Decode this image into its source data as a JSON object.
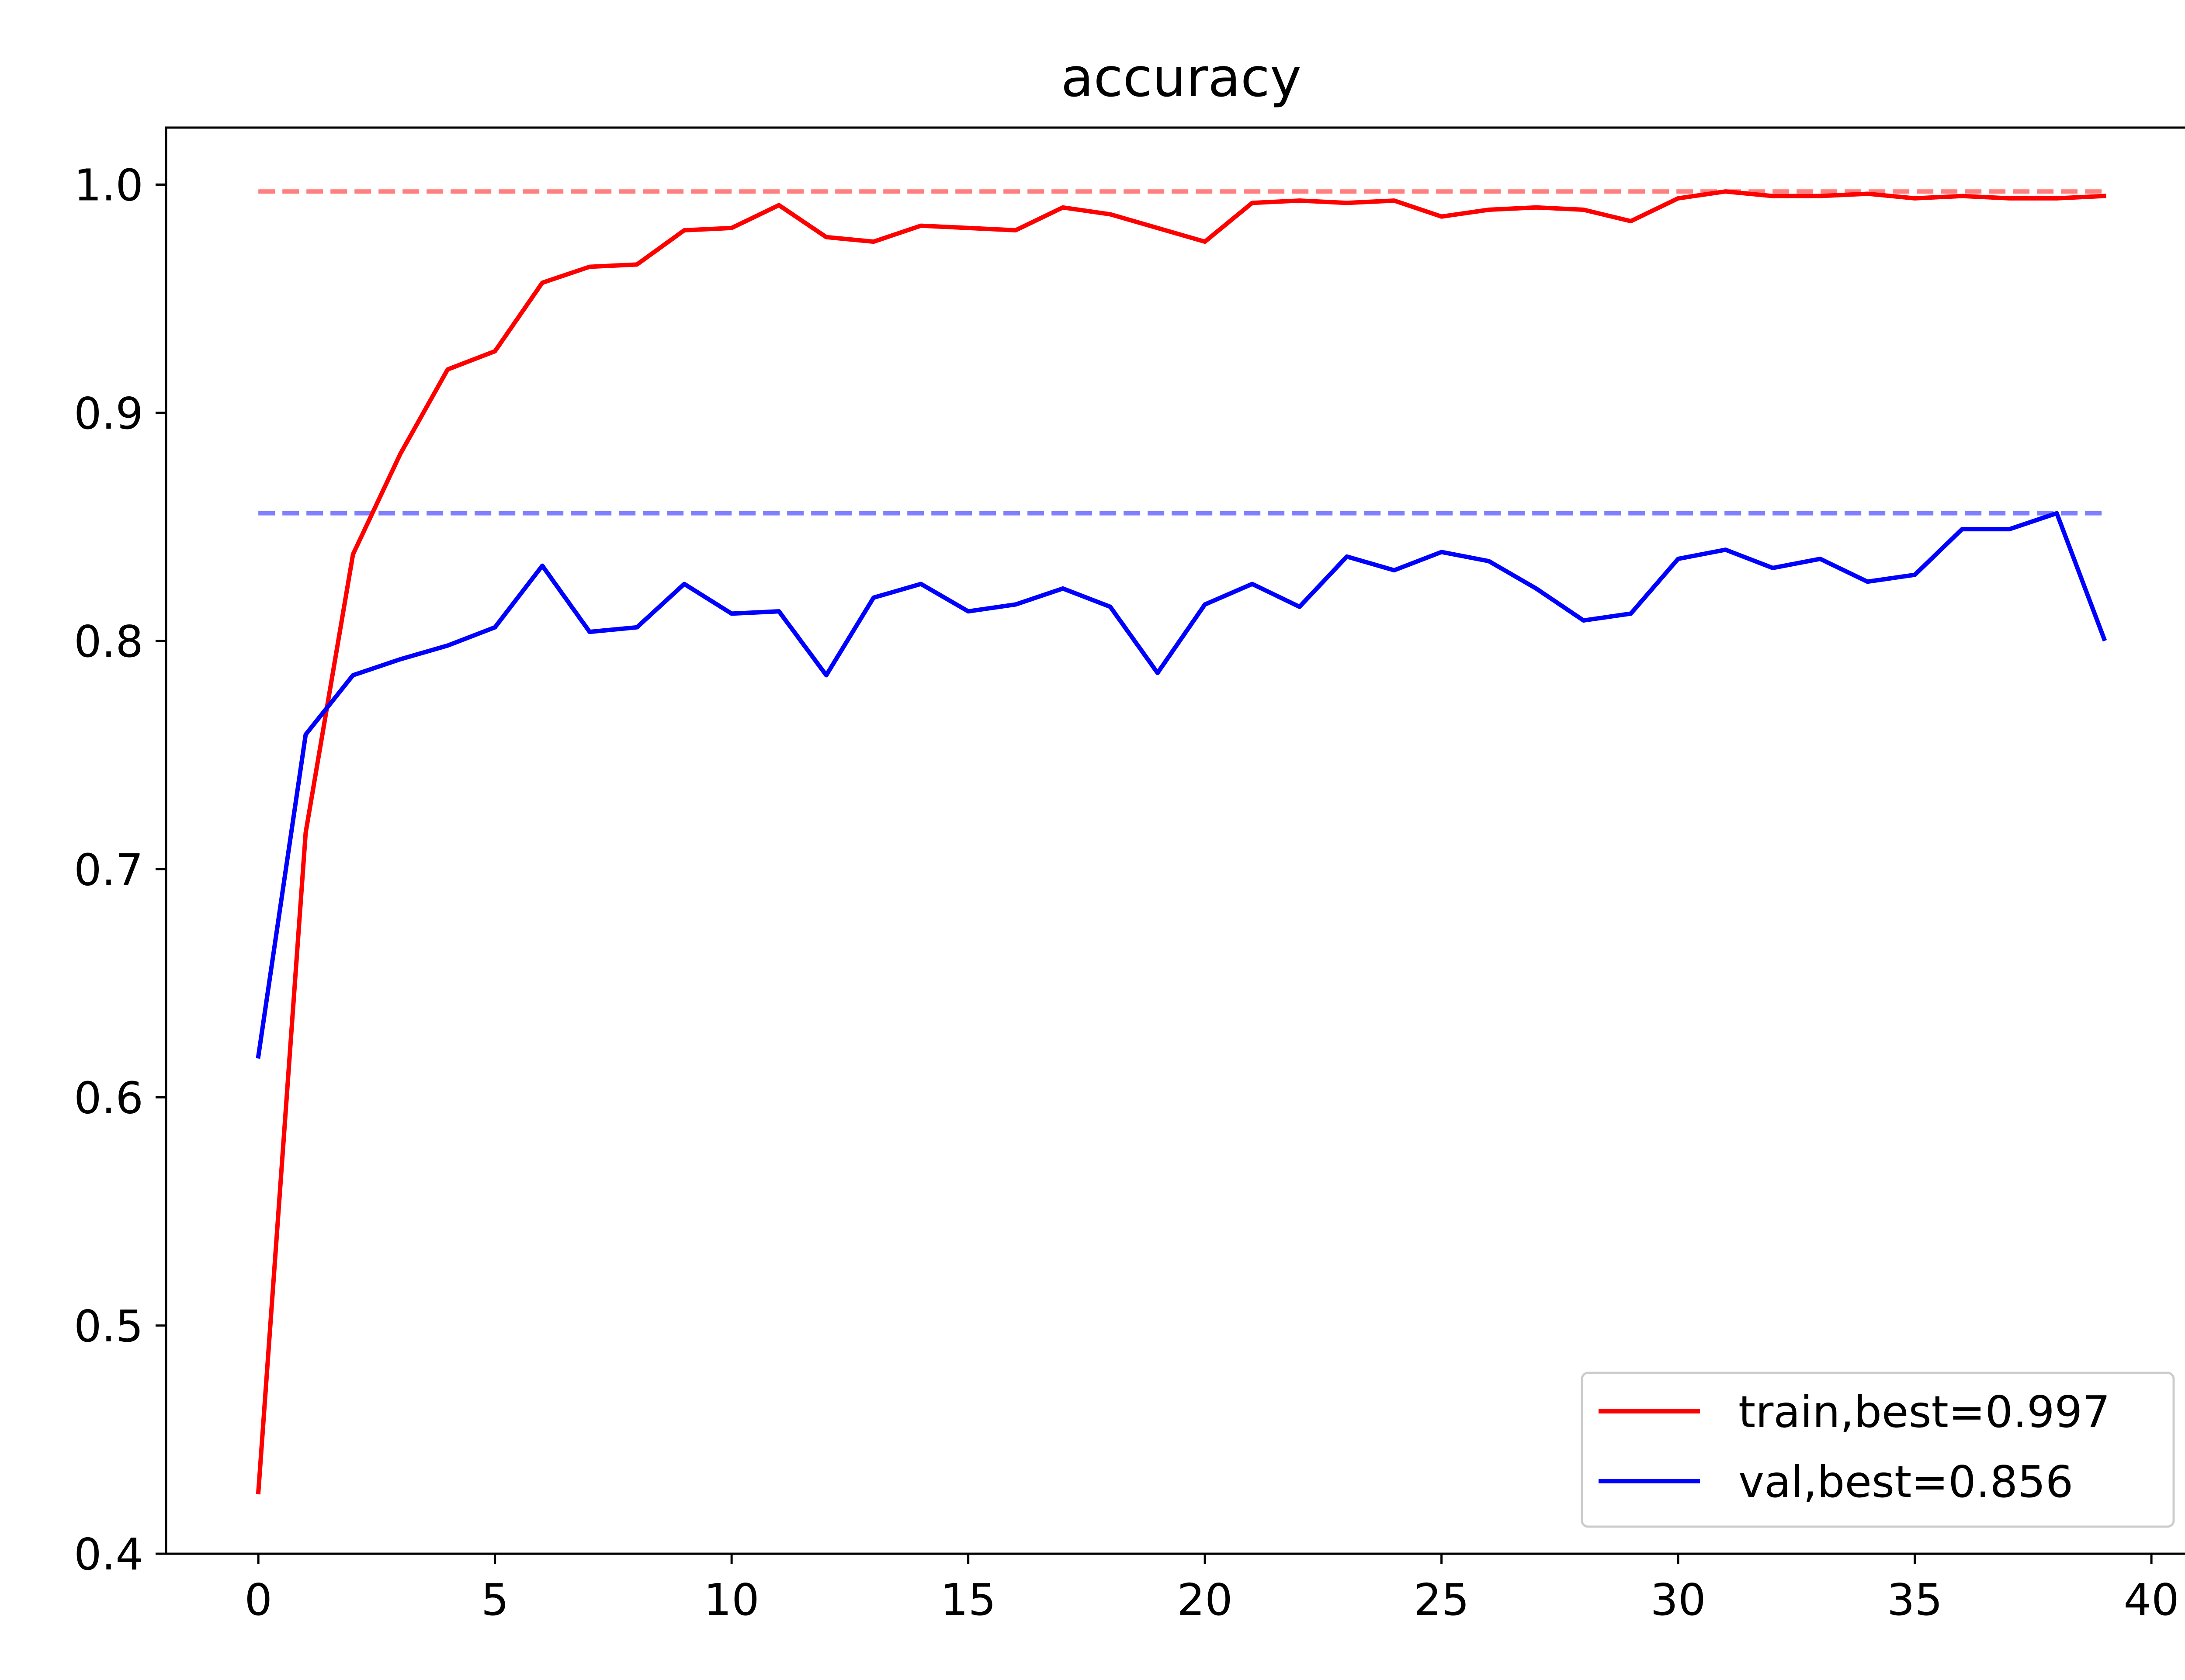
{
  "chart_data": {
    "type": "line",
    "title": "accuracy",
    "xlabel": "",
    "ylabel": "",
    "xlim": [
      -1.95,
      40.95
    ],
    "ylim": [
      0.4,
      1.025
    ],
    "xticks": [
      0,
      5,
      10,
      15,
      20,
      25,
      30,
      35,
      40
    ],
    "xtick_labels": [
      "0",
      "5",
      "10",
      "15",
      "20",
      "25",
      "30",
      "35",
      "40"
    ],
    "yticks": [
      0.4,
      0.5,
      0.6,
      0.7,
      0.8,
      0.9,
      1.0
    ],
    "ytick_labels": [
      "0.4",
      "0.5",
      "0.6",
      "0.7",
      "0.8",
      "0.9",
      "1.0"
    ],
    "grid": false,
    "legend_position": "lower-right",
    "x": [
      0,
      1,
      2,
      3,
      4,
      5,
      6,
      7,
      8,
      9,
      10,
      11,
      12,
      13,
      14,
      15,
      16,
      17,
      18,
      19,
      20,
      21,
      22,
      23,
      24,
      25,
      26,
      27,
      28,
      29,
      30,
      31,
      32,
      33,
      34,
      35,
      36,
      37,
      38,
      39
    ],
    "series": [
      {
        "name": "train,best=0.997",
        "color": "#ff0000",
        "values": [
          0.427,
          0.716,
          0.838,
          0.882,
          0.919,
          0.927,
          0.957,
          0.964,
          0.965,
          0.98,
          0.981,
          0.991,
          0.977,
          0.975,
          0.982,
          0.981,
          0.98,
          0.99,
          0.987,
          0.981,
          0.975,
          0.992,
          0.993,
          0.992,
          0.993,
          0.986,
          0.989,
          0.99,
          0.989,
          0.984,
          0.994,
          0.997,
          0.995,
          0.995,
          0.996,
          0.994,
          0.995,
          0.994,
          0.994,
          0.995
        ]
      },
      {
        "name": "val,best=0.856",
        "color": "#0000ff",
        "values": [
          0.618,
          0.759,
          0.785,
          0.792,
          0.798,
          0.806,
          0.833,
          0.804,
          0.806,
          0.825,
          0.812,
          0.813,
          0.785,
          0.819,
          0.825,
          0.813,
          0.816,
          0.823,
          0.815,
          0.786,
          0.816,
          0.825,
          0.815,
          0.837,
          0.831,
          0.839,
          0.835,
          0.823,
          0.809,
          0.812,
          0.836,
          0.84,
          0.832,
          0.836,
          0.826,
          0.829,
          0.849,
          0.849,
          0.856,
          0.801
        ]
      }
    ],
    "reference_lines": [
      {
        "y": 0.997,
        "color": "#ff0000",
        "opacity": 0.5,
        "style": "dashed"
      },
      {
        "y": 0.856,
        "color": "#0000ff",
        "opacity": 0.5,
        "style": "dashed"
      }
    ]
  }
}
